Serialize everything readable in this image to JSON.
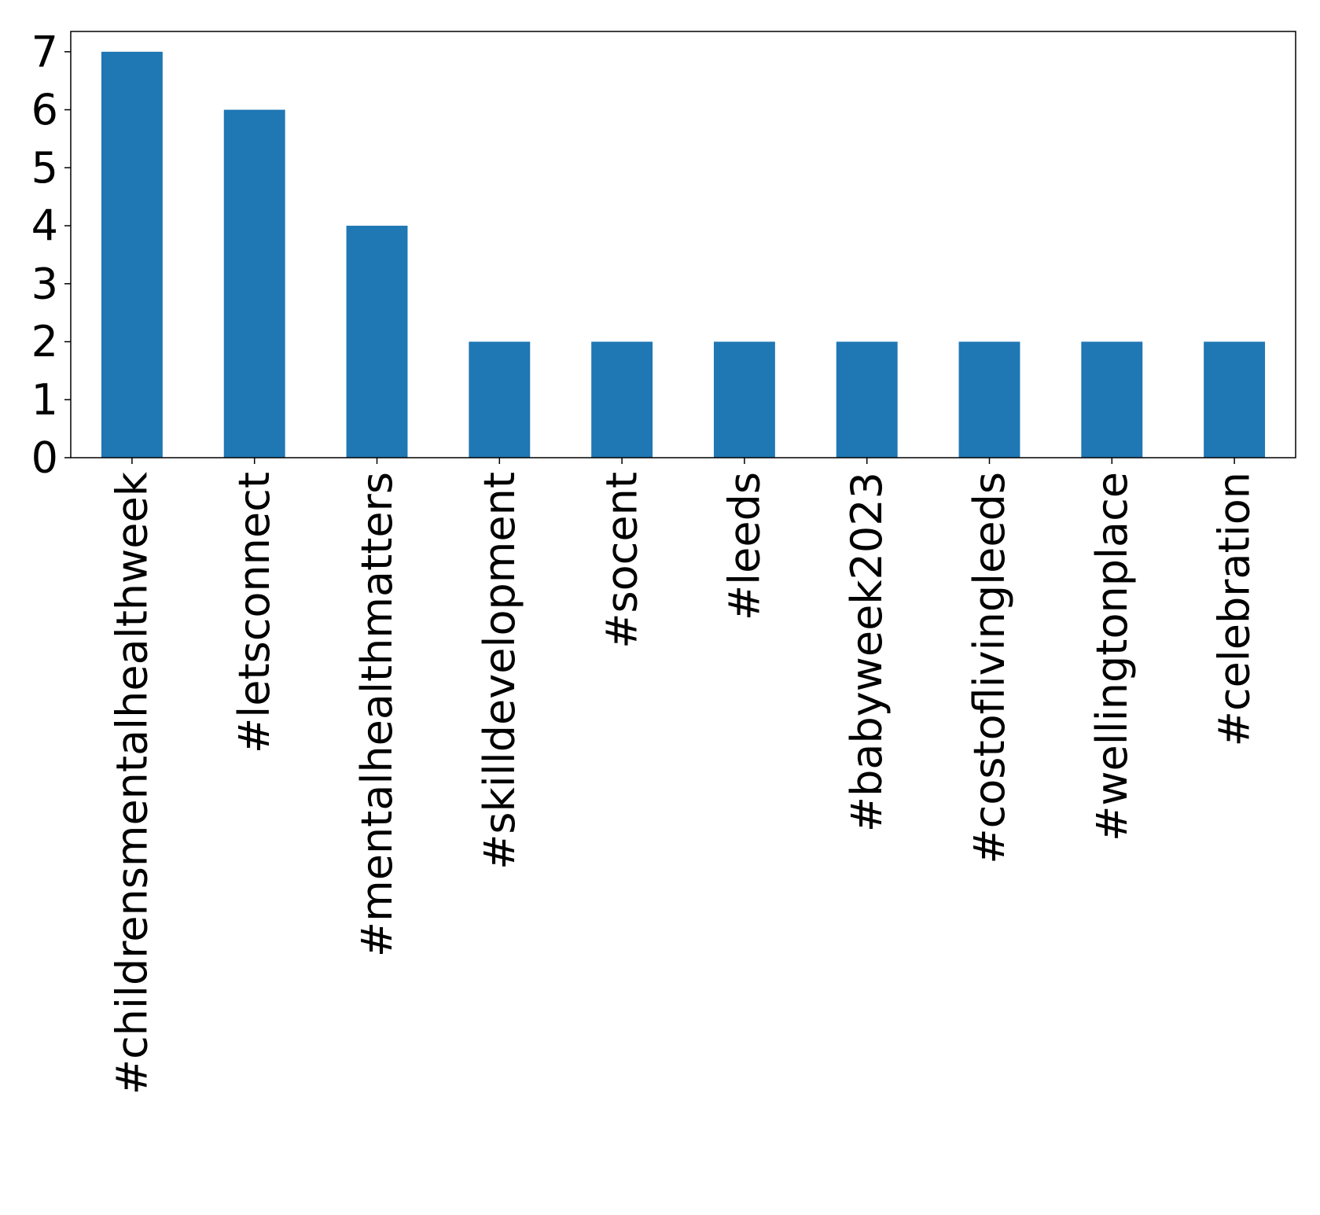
{
  "chart_data": {
    "type": "bar",
    "title": "",
    "xlabel": "",
    "ylabel": "",
    "categories": [
      "#childrensmentalhealthweek",
      "#letsconnect",
      "#mentalhealthmatters",
      "#skilldevelopment",
      "#socent",
      "#leeds",
      "#babyweek2023",
      "#costoflivingleeds",
      "#wellingtonplace",
      "#celebration"
    ],
    "values": [
      7,
      6,
      4,
      2,
      2,
      2,
      2,
      2,
      2,
      2
    ],
    "ylim": [
      0,
      7.35
    ],
    "yticks": [
      0,
      1,
      2,
      3,
      4,
      5,
      6,
      7
    ],
    "grid": false,
    "legend": "none",
    "colors": {
      "bar": "#1f77b4",
      "axis": "#000000"
    }
  }
}
